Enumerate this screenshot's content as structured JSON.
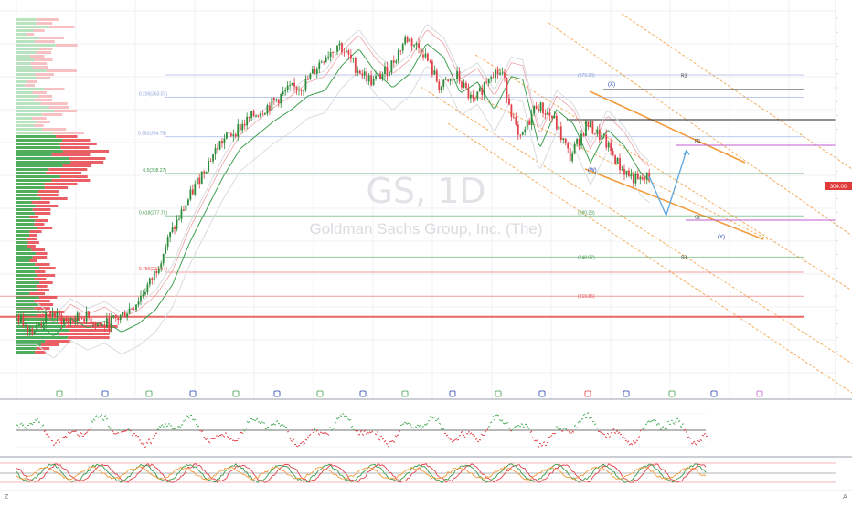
{
  "chart": {
    "symbol": "GS",
    "interval": "1D",
    "company": "Goldman Sachs Group, Inc. (The)",
    "last_price": "304.00",
    "bottom_letter": "Z"
  },
  "colors": {
    "up": "#2e8b3a",
    "down": "#e0424a",
    "fib_blue": "#8a9fd8",
    "fib_green": "#3d9a4a",
    "fib_red": "#e44a4a",
    "channel_orange": "#f39a3a",
    "wave_blue": "#1f3fae",
    "projection": "#5aa6e0",
    "price_tag": "#e03b3b"
  },
  "fib_labels": [
    {
      "text": "0.236(363.07)",
      "y": 363.07,
      "tone": "blue"
    },
    {
      "text": "0.382(334.75)",
      "y": 334.75,
      "tone": "blue"
    },
    {
      "text": "0.5(308.27)",
      "y": 308.27,
      "tone": "green"
    },
    {
      "text": "0.618(277.71)",
      "y": 277.71,
      "tone": "green"
    },
    {
      "text": "0.786(237.14)",
      "y": 237.14,
      "tone": "red"
    }
  ],
  "target_labels": [
    {
      "text": "(379.23)",
      "y": 379.23,
      "tone": "blue"
    },
    {
      "text": "(280.23)",
      "y": 280.23,
      "tone": "green"
    },
    {
      "text": "(248.07)",
      "y": 248.07,
      "tone": "green"
    },
    {
      "text": "(219.85)",
      "y": 219.85,
      "tone": "red"
    }
  ],
  "pivot_labels": [
    {
      "text": "R3",
      "y": 379.0
    },
    {
      "text": "R1",
      "y": 332.0
    },
    {
      "text": "S1",
      "y": 277.0
    },
    {
      "text": "S3",
      "y": 248.0
    }
  ],
  "wave_labels": [
    "(W)",
    "(X)",
    "(Y)"
  ],
  "chart_data": {
    "type": "candlestick",
    "ylim": [
      170,
      420
    ],
    "x_range_days": [
      0,
      610
    ],
    "price_path": [
      [
        0,
        205
      ],
      [
        15,
        195
      ],
      [
        30,
        208
      ],
      [
        45,
        201
      ],
      [
        60,
        206
      ],
      [
        75,
        198
      ],
      [
        90,
        204
      ],
      [
        105,
        214
      ],
      [
        120,
        232
      ],
      [
        135,
        262
      ],
      [
        150,
        286
      ],
      [
        165,
        310
      ],
      [
        180,
        330
      ],
      [
        195,
        340
      ],
      [
        210,
        350
      ],
      [
        225,
        358
      ],
      [
        240,
        368
      ],
      [
        255,
        372
      ],
      [
        270,
        390
      ],
      [
        285,
        402
      ],
      [
        300,
        385
      ],
      [
        315,
        374
      ],
      [
        330,
        384
      ],
      [
        345,
        406
      ],
      [
        360,
        396
      ],
      [
        375,
        370
      ],
      [
        390,
        378
      ],
      [
        405,
        358
      ],
      [
        420,
        382
      ],
      [
        430,
        380
      ],
      [
        445,
        330
      ],
      [
        460,
        358
      ],
      [
        475,
        348
      ],
      [
        490,
        320
      ],
      [
        505,
        344
      ],
      [
        520,
        332
      ],
      [
        535,
        312
      ],
      [
        550,
        302
      ],
      [
        560,
        306
      ]
    ],
    "projection_path": [
      [
        560,
        306
      ],
      [
        575,
        278
      ],
      [
        593,
        325
      ]
    ],
    "horizontal_levels": [
      {
        "y": 379.23,
        "tone": "blue"
      },
      {
        "y": 363.07,
        "tone": "blue"
      },
      {
        "y": 334.75,
        "tone": "blue"
      },
      {
        "y": 308.27,
        "tone": "green"
      },
      {
        "y": 277.71,
        "tone": "green"
      },
      {
        "y": 248.07,
        "tone": "green"
      },
      {
        "y": 237.14,
        "tone": "red"
      },
      {
        "y": 219.85,
        "tone": "red"
      },
      {
        "y": 205.0,
        "tone": "red"
      }
    ]
  }
}
